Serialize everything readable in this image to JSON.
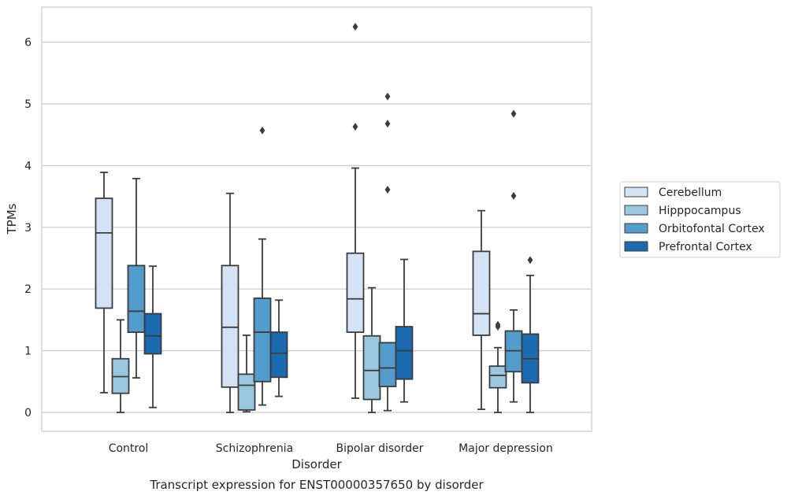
{
  "caption": "Transcript expression for ENST00000357650 by disorder",
  "chart_data": {
    "type": "box",
    "xlabel": "Disorder",
    "ylabel": "TPMs",
    "ylim": [
      -0.3,
      6.6
    ],
    "yticks": [
      0,
      1,
      2,
      3,
      4,
      5,
      6
    ],
    "grid": "horizontal",
    "legend_position": "right",
    "categories": [
      "Control",
      "Schizophrenia",
      "Bipolar disorder",
      "Major depression"
    ],
    "series": [
      {
        "name": "Cerebellum",
        "color": "#d3e3f3",
        "boxes": [
          {
            "whisker_low": 0.32,
            "q1": 1.69,
            "median": 2.91,
            "q3": 3.47,
            "whisker_high": 3.89,
            "outliers": []
          },
          {
            "whisker_low": 0.0,
            "q1": 0.41,
            "median": 1.38,
            "q3": 2.38,
            "whisker_high": 3.55,
            "outliers": []
          },
          {
            "whisker_low": 0.23,
            "q1": 1.3,
            "median": 1.84,
            "q3": 2.58,
            "whisker_high": 3.96,
            "outliers": [
              4.63,
              6.25
            ]
          },
          {
            "whisker_low": 0.05,
            "q1": 1.25,
            "median": 1.6,
            "q3": 2.61,
            "whisker_high": 3.27,
            "outliers": []
          }
        ]
      },
      {
        "name": "Hipppocampus",
        "color": "#9ac8e0",
        "boxes": [
          {
            "whisker_low": 0.0,
            "q1": 0.31,
            "median": 0.58,
            "q3": 0.87,
            "whisker_high": 1.5,
            "outliers": []
          },
          {
            "whisker_low": 0.01,
            "q1": 0.04,
            "median": 0.44,
            "q3": 0.62,
            "whisker_high": 1.25,
            "outliers": []
          },
          {
            "whisker_low": 0.0,
            "q1": 0.21,
            "median": 0.68,
            "q3": 1.24,
            "whisker_high": 2.02,
            "outliers": []
          },
          {
            "whisker_low": 0.0,
            "q1": 0.4,
            "median": 0.6,
            "q3": 0.75,
            "whisker_high": 1.05,
            "outliers": [
              1.39,
              1.42
            ]
          }
        ]
      },
      {
        "name": "Orbitofontal Cortex",
        "color": "#529dcc",
        "boxes": [
          {
            "whisker_low": 0.56,
            "q1": 1.3,
            "median": 1.64,
            "q3": 2.38,
            "whisker_high": 3.79,
            "outliers": []
          },
          {
            "whisker_low": 0.12,
            "q1": 0.5,
            "median": 1.3,
            "q3": 1.85,
            "whisker_high": 2.81,
            "outliers": [
              4.57
            ]
          },
          {
            "whisker_low": 0.03,
            "q1": 0.42,
            "median": 0.72,
            "q3": 1.13,
            "whisker_high": 1.13,
            "outliers": [
              3.61,
              4.68,
              5.12
            ]
          },
          {
            "whisker_low": 0.17,
            "q1": 0.66,
            "median": 1.0,
            "q3": 1.32,
            "whisker_high": 1.66,
            "outliers": [
              3.51,
              4.84
            ]
          }
        ]
      },
      {
        "name": "Prefrontal Cortex",
        "color": "#1c6aaf",
        "boxes": [
          {
            "whisker_low": 0.08,
            "q1": 0.95,
            "median": 1.24,
            "q3": 1.6,
            "whisker_high": 2.37,
            "outliers": []
          },
          {
            "whisker_low": 0.26,
            "q1": 0.57,
            "median": 0.96,
            "q3": 1.3,
            "whisker_high": 1.82,
            "outliers": []
          },
          {
            "whisker_low": 0.17,
            "q1": 0.54,
            "median": 1.0,
            "q3": 1.39,
            "whisker_high": 2.48,
            "outliers": []
          },
          {
            "whisker_low": 0.0,
            "q1": 0.48,
            "median": 0.87,
            "q3": 1.27,
            "whisker_high": 2.22,
            "outliers": [
              2.47
            ]
          }
        ]
      }
    ]
  }
}
